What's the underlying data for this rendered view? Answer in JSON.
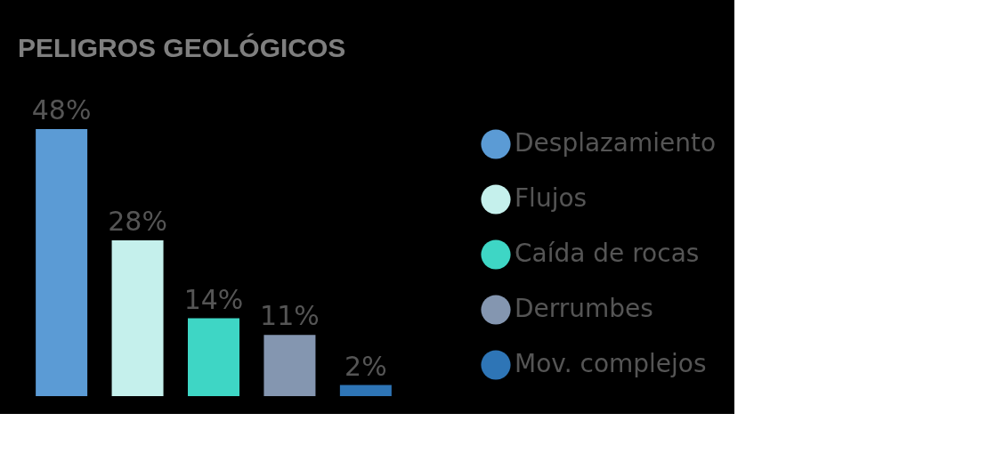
{
  "chart_data": {
    "type": "bar",
    "title": "PELIGROS GEOLÓGICOS",
    "stacked": true,
    "categories": [
      null,
      null,
      null,
      null,
      null
    ],
    "series": [
      {
        "name": "Desplazamiento",
        "color": "#5b9bd5",
        "values": [
          48,
          null,
          null,
          null,
          null
        ],
        "value_labels": [
          "48%",
          null,
          null,
          null,
          null
        ]
      },
      {
        "name": "Flujos",
        "color": "#c5f0ec",
        "values": [
          null,
          28,
          null,
          null,
          null
        ],
        "value_labels": [
          null,
          "28%",
          null,
          null,
          null
        ]
      },
      {
        "name": "Caída de rocas",
        "color": "#3ed6c5",
        "values": [
          null,
          null,
          14,
          null,
          null
        ],
        "value_labels": [
          null,
          null,
          "14%",
          null,
          null
        ]
      },
      {
        "name": "Derrumbes",
        "color": "#8496b0",
        "values": [
          null,
          null,
          null,
          11,
          null
        ],
        "value_labels": [
          null,
          null,
          null,
          "11%",
          null
        ]
      },
      {
        "name": "Mov. complejos",
        "color": "#2e75b6",
        "values": [
          null,
          null,
          null,
          null,
          2
        ],
        "value_labels": [
          null,
          null,
          null,
          null,
          "2%"
        ]
      }
    ],
    "legend": "right",
    "grid": false
  }
}
